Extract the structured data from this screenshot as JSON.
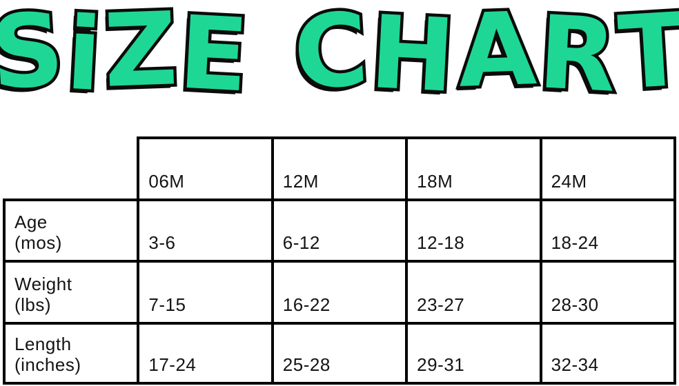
{
  "page": {
    "title_word1": "SiZE",
    "title_word2": "CHART"
  },
  "colors": {
    "title_fill": "#1FD795",
    "title_outline": "#0B0B0B",
    "table_border": "#000000",
    "text": "#141414",
    "bg": "#FFFFFF"
  },
  "table": {
    "columns": [
      "06M",
      "12M",
      "18M",
      "24M"
    ],
    "rows": [
      {
        "name": "Age",
        "unit": "(mos)",
        "values": [
          "3-6",
          "6-12",
          "12-18",
          "18-24"
        ]
      },
      {
        "name": "Weight",
        "unit": "(lbs)",
        "values": [
          "7-15",
          "16-22",
          "23-27",
          "28-30"
        ]
      },
      {
        "name": "Length",
        "unit": "(inches)",
        "values": [
          "17-24",
          "25-28",
          "29-31",
          "32-34"
        ]
      }
    ]
  },
  "chart_data": {
    "type": "table",
    "title": "SIZE CHART",
    "columns": [
      "06M",
      "12M",
      "18M",
      "24M"
    ],
    "rows": [
      {
        "label": "Age (mos)",
        "values": [
          "3-6",
          "6-12",
          "12-18",
          "18-24"
        ]
      },
      {
        "label": "Weight (lbs)",
        "values": [
          "7-15",
          "16-22",
          "23-27",
          "28-30"
        ]
      },
      {
        "label": "Length (inches)",
        "values": [
          "17-24",
          "25-28",
          "29-31",
          "32-34"
        ]
      }
    ]
  }
}
